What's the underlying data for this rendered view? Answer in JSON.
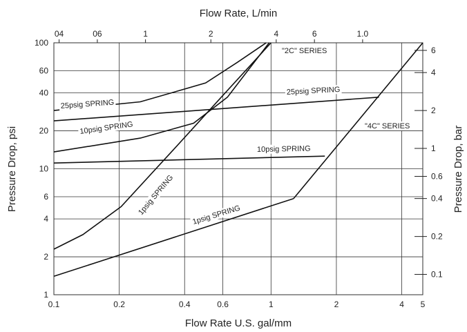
{
  "chart_data": {
    "type": "line",
    "xlabel": "Flow Rate U.S. gal/mm",
    "x2label": "Flow Rate, L/min",
    "ylabel": "Pressure Drop, psi",
    "y2label": "Pressure Drop, bar",
    "log_x": true,
    "log_y": true,
    "grid": true,
    "xlim": [
      0.1,
      5
    ],
    "xticks": [
      0.1,
      0.2,
      0.4,
      0.6,
      1,
      2,
      4,
      5
    ],
    "x2lim": [
      0.3785,
      18.93
    ],
    "x2ticks": [
      {
        "value": 0.4,
        "label": "04"
      },
      {
        "value": 0.6,
        "label": "06"
      },
      1,
      2,
      4,
      6,
      {
        "value": 10,
        "label": "1.0"
      }
    ],
    "ylim": [
      1,
      100
    ],
    "yticks": [
      1,
      2,
      4,
      6,
      10,
      20,
      40,
      60,
      100
    ],
    "y2lim": [
      0.06895,
      6.895
    ],
    "y2ticks": [
      0.1,
      0.2,
      0.4,
      0.6,
      1,
      2,
      4,
      6
    ],
    "series": [
      {
        "color": "#111111",
        "x": [
          0.1,
          0.25,
          0.5,
          0.7,
          0.95
        ],
        "values": [
          29,
          34,
          48,
          70,
          100
        ]
      },
      {
        "color": "#111111",
        "x": [
          0.1,
          0.25,
          0.44,
          0.63,
          0.98
        ],
        "values": [
          13.6,
          17.5,
          23,
          37,
          100
        ]
      },
      {
        "color": "#111111",
        "x": [
          0.1,
          0.136,
          0.204,
          0.353,
          0.59,
          1.0
        ],
        "values": [
          2.3,
          3,
          5,
          14,
          37,
          100
        ]
      },
      {
        "color": "#111111",
        "x": [
          0.1,
          3.14
        ],
        "values": [
          24,
          37
        ]
      },
      {
        "color": "#111111",
        "x": [
          0.1,
          1.77
        ],
        "values": [
          11.1,
          12.6
        ]
      },
      {
        "color": "#111111",
        "x": [
          0.1,
          1.27
        ],
        "values": [
          1.4,
          5.8
        ]
      },
      {
        "color": "#111111",
        "x": [
          1.27,
          5
        ],
        "values": [
          5.8,
          100
        ]
      }
    ],
    "annotations": [
      "\"2C\" SERIES",
      "25psig SPRING",
      "25psig SPRING",
      "10psig SPRING",
      "10psig SPRING",
      "1psig SPRING",
      "1psig SPRING",
      "\"4C\" SERIES"
    ]
  }
}
